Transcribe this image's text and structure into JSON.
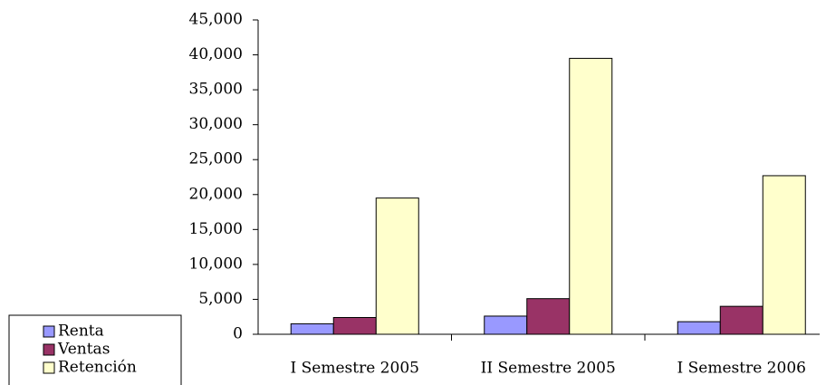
{
  "chart_data": {
    "type": "bar",
    "categories": [
      "I Semestre 2005",
      "II Semestre 2005",
      "I Semestre 2006"
    ],
    "series": [
      {
        "name": "Renta",
        "color": "#9999ff",
        "values": [
          1500,
          2600,
          1800
        ]
      },
      {
        "name": "Ventas",
        "color": "#993366",
        "values": [
          2400,
          5100,
          4000
        ]
      },
      {
        "name": "Retención",
        "color": "#ffffcc",
        "values": [
          19500,
          39500,
          22700
        ]
      }
    ],
    "ylim": [
      0,
      45000
    ],
    "yticks": [
      0,
      {
        "value": 5000,
        "label": "5,000"
      },
      {
        "value": 10000,
        "label": "10,000"
      },
      {
        "value": 15000,
        "label": "15,000"
      },
      {
        "value": 20000,
        "label": "20,000"
      },
      {
        "value": 25000,
        "label": "25,000"
      },
      {
        "value": 30000,
        "label": "30,000"
      },
      {
        "value": 35000,
        "label": "35,000"
      },
      {
        "value": 40000,
        "label": "40,000"
      },
      {
        "value": 45000,
        "label": "45,000"
      }
    ],
    "grid": false,
    "legend": "bottom-left"
  }
}
